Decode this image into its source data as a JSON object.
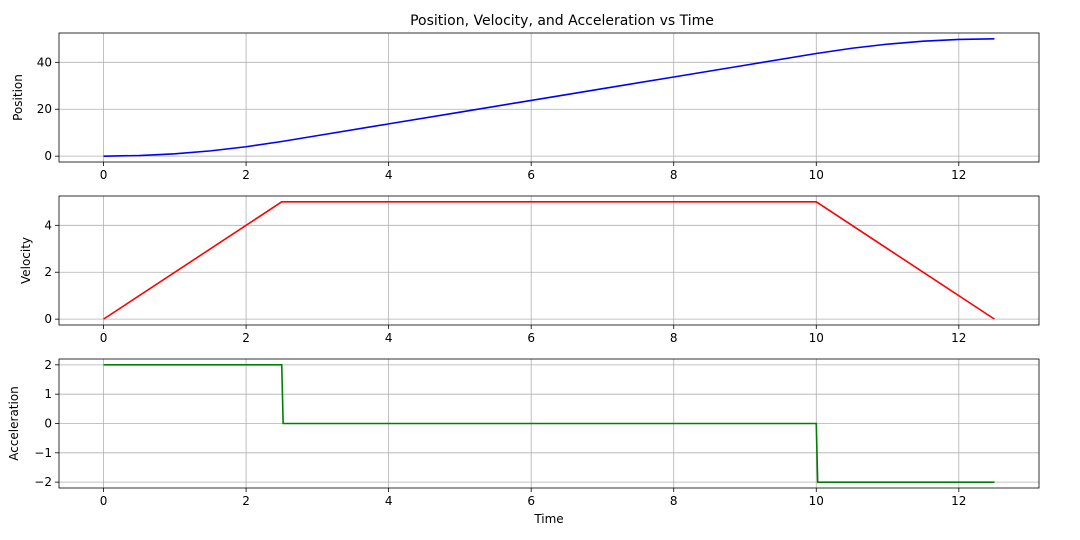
{
  "figure": {
    "title": "Position, Velocity, and Acceleration vs Time"
  },
  "chart_data": [
    {
      "type": "line",
      "xlabel": "",
      "ylabel": "Position",
      "xlim": [
        -0.625,
        13.125
      ],
      "ylim": [
        -2.5,
        52.5
      ],
      "xticks": [
        0,
        2,
        4,
        6,
        8,
        10,
        12
      ],
      "yticks": [
        0,
        20,
        40
      ],
      "grid": true,
      "series": [
        {
          "color": "#0000ff",
          "x": [
            0,
            0.5,
            1,
            1.5,
            2,
            2.5,
            3,
            4,
            5,
            6,
            7,
            8,
            9,
            10,
            10.5,
            11,
            11.5,
            12,
            12.5
          ],
          "y": [
            0,
            0.25,
            1,
            2.25,
            4,
            6.25,
            8.75,
            13.75,
            18.75,
            23.75,
            28.75,
            33.75,
            38.75,
            43.75,
            46,
            47.75,
            49,
            49.75,
            50
          ]
        }
      ]
    },
    {
      "type": "line",
      "xlabel": "",
      "ylabel": "Velocity",
      "xlim": [
        -0.625,
        13.125
      ],
      "ylim": [
        -0.25,
        5.25
      ],
      "xticks": [
        0,
        2,
        4,
        6,
        8,
        10,
        12
      ],
      "yticks": [
        0,
        2,
        4
      ],
      "grid": true,
      "series": [
        {
          "color": "#ff0000",
          "x": [
            0,
            2.5,
            10,
            12.5
          ],
          "y": [
            0,
            5,
            5,
            0
          ]
        }
      ]
    },
    {
      "type": "line",
      "xlabel": "Time",
      "ylabel": "Acceleration",
      "xlim": [
        -0.625,
        13.125
      ],
      "ylim": [
        -2.2,
        2.2
      ],
      "xticks": [
        0,
        2,
        4,
        6,
        8,
        10,
        12
      ],
      "yticks": [
        -2,
        -1,
        0,
        1,
        2
      ],
      "ytick_labels": [
        "−2",
        "−1",
        "0",
        "1",
        "2"
      ],
      "grid": true,
      "series": [
        {
          "color": "#008000",
          "x": [
            0,
            2.5,
            2.52,
            10,
            10.02,
            12.5
          ],
          "y": [
            2,
            2,
            0,
            0,
            -2,
            -2
          ]
        }
      ]
    }
  ]
}
